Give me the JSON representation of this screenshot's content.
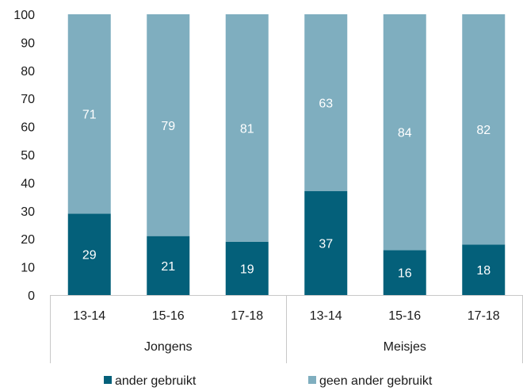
{
  "chart_data": {
    "type": "bar",
    "stacked": true,
    "ylim": [
      0,
      100
    ],
    "yticks": [
      0,
      10,
      20,
      30,
      40,
      50,
      60,
      70,
      80,
      90,
      100
    ],
    "grid": false,
    "legend_position": "bottom",
    "groups": [
      {
        "label": "Jongens",
        "categories": [
          "13-14",
          "15-16",
          "17-18"
        ]
      },
      {
        "label": "Meisjes",
        "categories": [
          "13-14",
          "15-16",
          "17-18"
        ]
      }
    ],
    "categories": [
      "13-14",
      "15-16",
      "17-18",
      "13-14",
      "15-16",
      "17-18"
    ],
    "series": [
      {
        "name": "ander gebruikt",
        "color": "#04607a",
        "values": [
          29,
          21,
          19,
          37,
          16,
          18
        ]
      },
      {
        "name": "geen ander gebruikt",
        "color": "#7faebf",
        "values": [
          71,
          79,
          81,
          63,
          84,
          82
        ]
      }
    ]
  }
}
